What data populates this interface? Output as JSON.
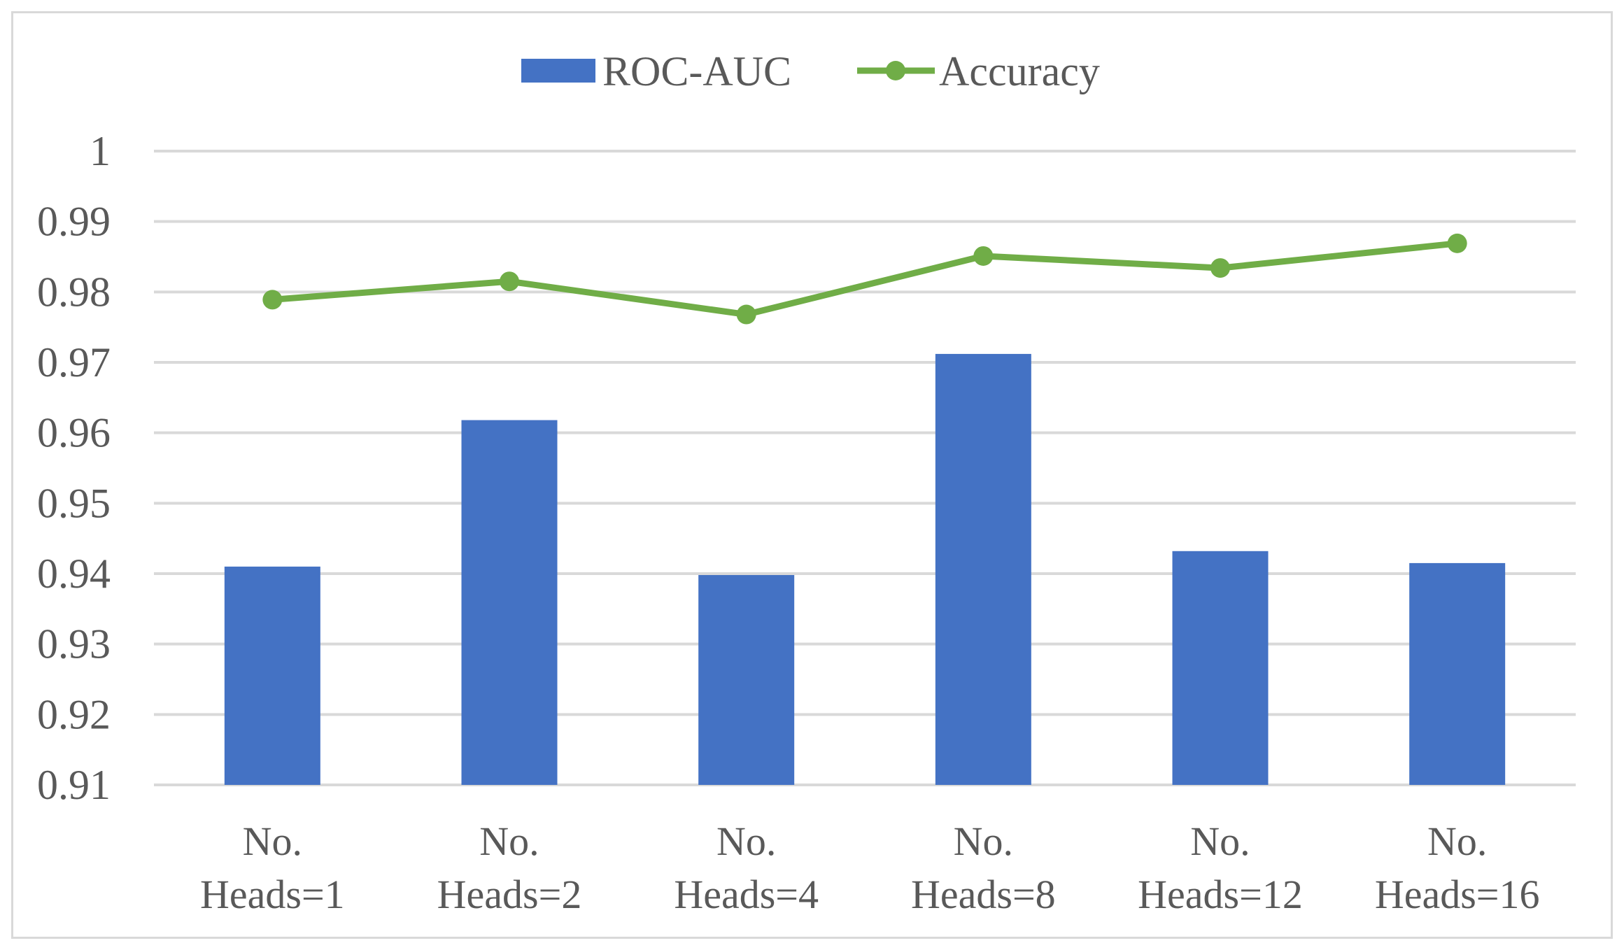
{
  "chart_data": {
    "type": "bar",
    "title": "",
    "xlabel": "",
    "ylabel": "",
    "categories": [
      [
        "No.",
        "Heads=1"
      ],
      [
        "No.",
        "Heads=2"
      ],
      [
        "No.",
        "Heads=4"
      ],
      [
        "No.",
        "Heads=8"
      ],
      [
        "No.",
        "Heads=12"
      ],
      [
        "No.",
        "Heads=16"
      ]
    ],
    "series": [
      {
        "name": "ROC-AUC",
        "type": "bar",
        "color": "#4472C4",
        "values": [
          0.941,
          0.9618,
          0.9398,
          0.9712,
          0.9432,
          0.9415
        ]
      },
      {
        "name": "Accuracy",
        "type": "line",
        "color": "#70AD47",
        "values": [
          0.9789,
          0.9815,
          0.9768,
          0.9851,
          0.9834,
          0.9869
        ]
      }
    ],
    "ylim": [
      0.91,
      1.0
    ],
    "yticks": [
      "0.91",
      "0.92",
      "0.93",
      "0.94",
      "0.95",
      "0.96",
      "0.97",
      "0.98",
      "0.99",
      "1"
    ],
    "grid": true,
    "legend_position": "top-center",
    "gridline_color": "#d9d9d9",
    "axis_text_color": "#595959"
  }
}
